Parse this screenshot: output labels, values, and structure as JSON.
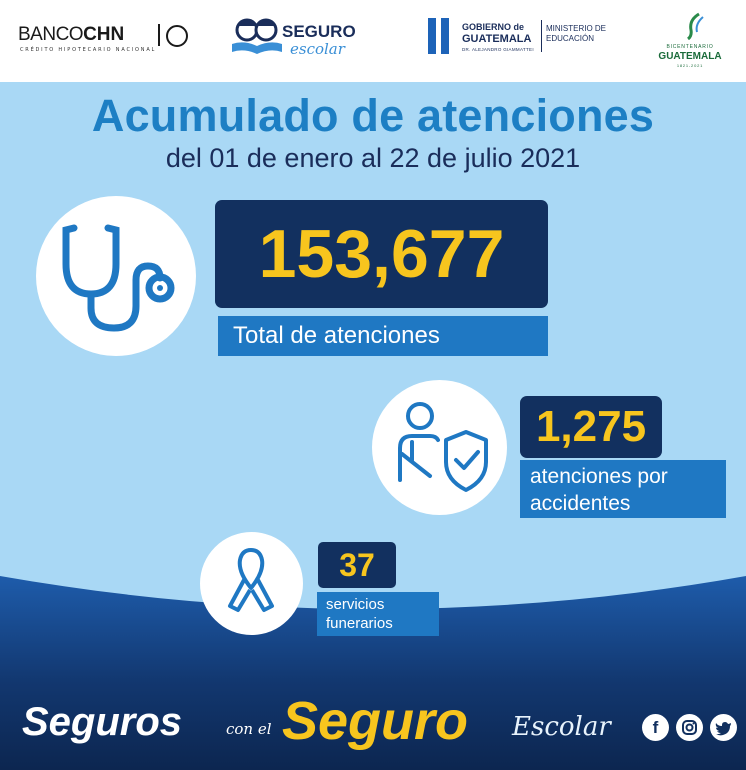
{
  "header": {
    "banco": {
      "name_light": "BANCO",
      "name_bold": "CHN",
      "subtitle": "CRÉDITO HIPOTECARIO NACIONAL"
    },
    "seguro_logo": {
      "line1": "SEGURO",
      "line2": "escolar"
    },
    "gobierno": {
      "line1": "GOBIERNO de",
      "line2": "GUATEMALA",
      "line3": "DR. ALEJANDRO GIAMMATTEI",
      "ministry": "MINISTERIO DE EDUCACIÓN"
    },
    "bicentenario": {
      "line1": "BICENTENARIO",
      "line2": "GUATEMALA",
      "line3": "1821-2021"
    }
  },
  "title": "Acumulado de atenciones",
  "subtitle": "del 01 de enero al 22 de julio 2021",
  "stats": {
    "total": {
      "value": "153,677",
      "label": "Total de atenciones",
      "icon": "stethoscope-icon"
    },
    "accidentes": {
      "value": "1,275",
      "label_line1": "atenciones por",
      "label_line2": "accidentes",
      "icon": "injured-person-shield-icon"
    },
    "funerarios": {
      "value": "37",
      "label_line1": "servicios",
      "label_line2": "funerarios",
      "icon": "awareness-ribbon-icon"
    }
  },
  "tagline": {
    "part1": "Seguros",
    "part2": "con el",
    "part3": "Seguro",
    "part4": "Escolar"
  },
  "social": {
    "facebook": "f",
    "instagram": "◎",
    "twitter": "🐦"
  },
  "colors": {
    "background": "#a9d8f5",
    "navy": "#12305f",
    "label_blue": "#1f78c3",
    "title_blue": "#1d7fc4",
    "yellow": "#f7c51e"
  }
}
